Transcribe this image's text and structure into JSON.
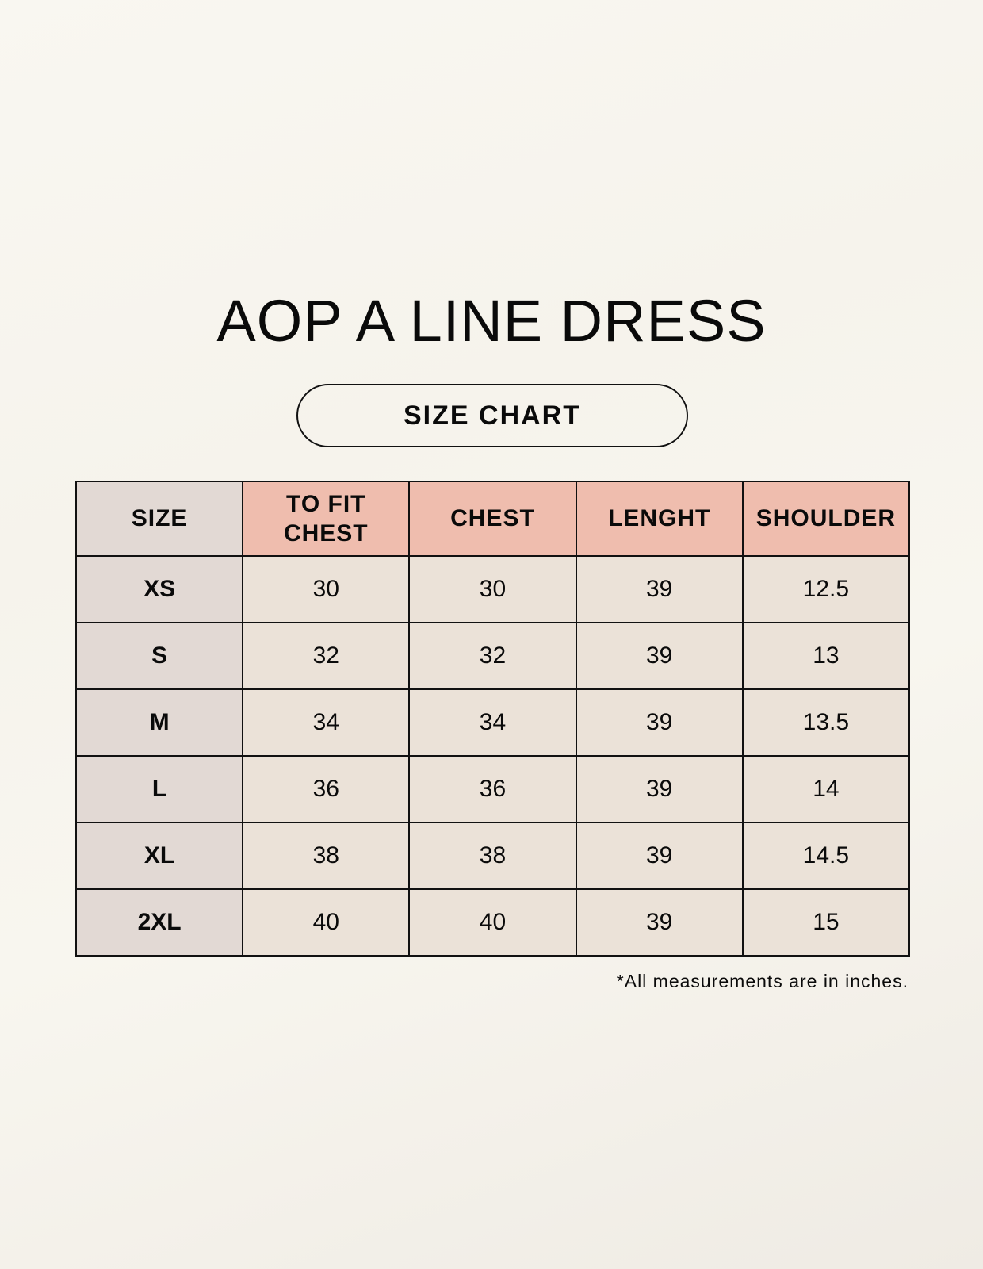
{
  "title": "AOP A LINE DRESS",
  "subtitle": "SIZE CHART",
  "table": {
    "headers": [
      "SIZE",
      "TO FIT CHEST",
      "CHEST",
      "LENGHT",
      "SHOULDER"
    ],
    "rows": [
      [
        "XS",
        "30",
        "30",
        "39",
        "12.5"
      ],
      [
        "S",
        "32",
        "32",
        "39",
        "13"
      ],
      [
        "M",
        "34",
        "34",
        "39",
        "13.5"
      ],
      [
        "L",
        "36",
        "36",
        "39",
        "14"
      ],
      [
        "XL",
        "38",
        "38",
        "39",
        "14.5"
      ],
      [
        "2XL",
        "40",
        "40",
        "39",
        "15"
      ]
    ]
  },
  "footnote": "*All measurements are in inches.",
  "colors": {
    "header_accent": "#efbdae",
    "size_column": "#e2d9d4",
    "cell": "#ebe2d8"
  }
}
